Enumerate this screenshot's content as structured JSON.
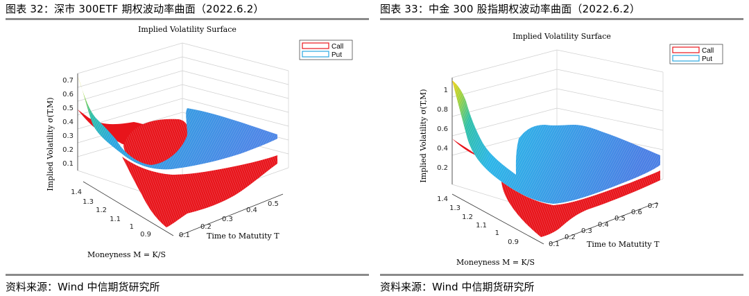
{
  "panels": [
    {
      "figure_title": "图表 32：深市 300ETF 期权波动率曲面（2022.6.2）",
      "source": "资料来源：Wind 中信期货研究所",
      "chart_data": {
        "type": "surface3d",
        "title": "Implied Volatility Surface",
        "xlabel": "Time to Matutity T",
        "ylabel": "Implied Volatility σ(T,M)",
        "zlabel": "Moneyness M = K/S",
        "time_ticks": [
          "0.1",
          "0.2",
          "0.3",
          "0.4",
          "0.5"
        ],
        "moneyness_ticks": [
          "1.4",
          "1.3",
          "1.2",
          "1.1",
          "1",
          "0.9"
        ],
        "vol_ticks": [
          "0.1",
          "0.2",
          "0.3",
          "0.4",
          "0.5",
          "0.6",
          "0.7"
        ],
        "time_range": [
          0.05,
          0.55
        ],
        "moneyness_range": [
          0.85,
          1.4
        ],
        "vol_range": [
          0.1,
          0.7
        ],
        "legend": {
          "position": "top-right",
          "entries": [
            "Call",
            "Put"
          ]
        },
        "series": [
          {
            "name": "Call",
            "color": "#e8141b",
            "approx_vol_range": [
              0.0,
              0.5
            ]
          },
          {
            "name": "Put",
            "colormap": "parula",
            "approx_vol_range": [
              0.15,
              0.72
            ]
          }
        ]
      }
    },
    {
      "figure_title": "图表 33：中金 300 股指期权波动率曲面（2022.6.2）",
      "source": "资料来源：Wind 中信期货研究所",
      "chart_data": {
        "type": "surface3d",
        "title": "Implied Volatility Surface",
        "xlabel": "Time to Matutity T",
        "ylabel": "Implied Volatility σ(T,M)",
        "zlabel": "Moneyness M = K/S",
        "time_ticks": [
          "0.1",
          "0.2",
          "0.3",
          "0.4",
          "0.5",
          "0.6",
          "0.7"
        ],
        "moneyness_ticks": [
          "1.4",
          "1.3",
          "1.2",
          "1.1",
          "1",
          "0.9"
        ],
        "vol_ticks": [
          "0.2",
          "0.4",
          "0.6",
          "0.8",
          "1"
        ],
        "time_range": [
          0.05,
          0.75
        ],
        "moneyness_range": [
          0.85,
          1.4
        ],
        "vol_range": [
          0.1,
          1.1
        ],
        "legend": {
          "position": "top-right",
          "entries": [
            "Call",
            "Put"
          ]
        },
        "series": [
          {
            "name": "Call",
            "color": "#e8141b",
            "approx_vol_range": [
              0.0,
              0.5
            ]
          },
          {
            "name": "Put",
            "colormap": "parula",
            "approx_vol_range": [
              0.2,
              1.05
            ]
          }
        ]
      }
    }
  ]
}
